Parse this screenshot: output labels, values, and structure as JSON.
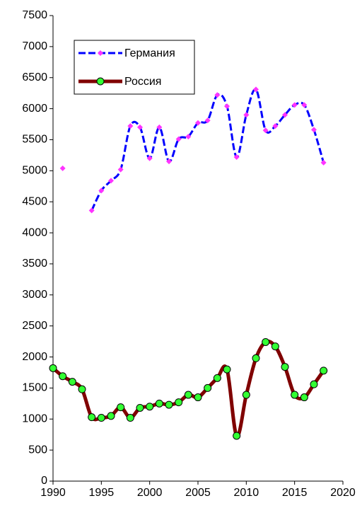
{
  "chart_data": {
    "type": "line",
    "x": [
      1990,
      1991,
      1992,
      1993,
      1994,
      1995,
      1996,
      1997,
      1998,
      1999,
      2000,
      2001,
      2002,
      2003,
      2004,
      2005,
      2006,
      2007,
      2008,
      2009,
      2010,
      2011,
      2012,
      2013,
      2014,
      2015,
      2016,
      2017,
      2018
    ],
    "series": [
      {
        "name": "Германия",
        "color": "#0000ff",
        "marker_color": "#ff33ff",
        "values": [
          null,
          5040,
          null,
          null,
          4360,
          4680,
          4840,
          5020,
          5720,
          5700,
          5200,
          5700,
          5150,
          5510,
          5550,
          5770,
          5810,
          6220,
          6040,
          5220,
          5900,
          6310,
          5650,
          5720,
          5900,
          6060,
          6060,
          5660,
          5130
        ]
      },
      {
        "name": "Россия",
        "color": "#800000",
        "marker_color": "#33ff33",
        "values": [
          1820,
          1690,
          1600,
          1480,
          1030,
          1020,
          1050,
          1190,
          1020,
          1180,
          1200,
          1250,
          1230,
          1270,
          1390,
          1350,
          1500,
          1660,
          1800,
          730,
          1390,
          1980,
          2240,
          2170,
          1840,
          1390,
          1350,
          1560,
          1780
        ]
      }
    ],
    "xlim": [
      1990,
      2020
    ],
    "xticks": [
      1990,
      1995,
      2000,
      2005,
      2010,
      2015,
      2020
    ],
    "ylim": [
      0,
      7500
    ],
    "yticks": [
      0,
      500,
      1000,
      1500,
      2000,
      2500,
      3000,
      3500,
      4000,
      4500,
      5000,
      5500,
      6000,
      6500,
      7000,
      7500
    ],
    "grid": false,
    "legend": "top-left"
  }
}
